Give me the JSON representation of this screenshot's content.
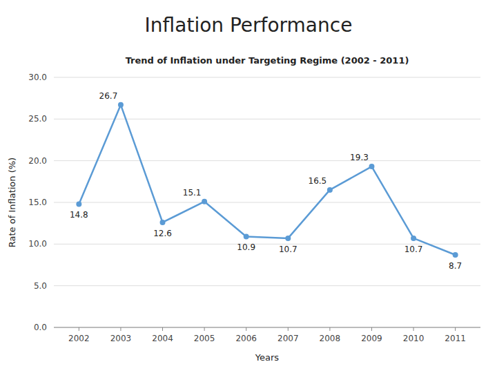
{
  "chart_data": {
    "type": "line",
    "title": "Inflation Performance",
    "subtitle": "Trend of Inflation under Targeting Regime (2002 - 2011)",
    "xlabel": "Years",
    "ylabel": "Rate of Inflation (%)",
    "x": [
      2002,
      2003,
      2004,
      2005,
      2006,
      2007,
      2008,
      2009,
      2010,
      2011
    ],
    "values": [
      14.8,
      26.7,
      12.6,
      15.1,
      10.9,
      10.7,
      16.5,
      19.3,
      10.7,
      8.7
    ],
    "color": "#5B9BD5",
    "marker": "circle",
    "xlim": [
      2001.4,
      2011.6
    ],
    "xticks": [
      2002,
      2003,
      2004,
      2005,
      2006,
      2007,
      2008,
      2009,
      2010,
      2011
    ],
    "ylim": [
      0.0,
      30.0
    ],
    "yticks": [
      {
        "value": 0.0,
        "label": "0.0"
      },
      {
        "value": 5.0,
        "label": "5.0"
      },
      {
        "value": 10.0,
        "label": "10.0"
      },
      {
        "value": 15.0,
        "label": "15.0"
      },
      {
        "value": 20.0,
        "label": "20.0"
      },
      {
        "value": 25.0,
        "label": "25.0"
      },
      {
        "value": 30.0,
        "label": "30.0"
      }
    ],
    "grid": true,
    "data_labels": true
  }
}
